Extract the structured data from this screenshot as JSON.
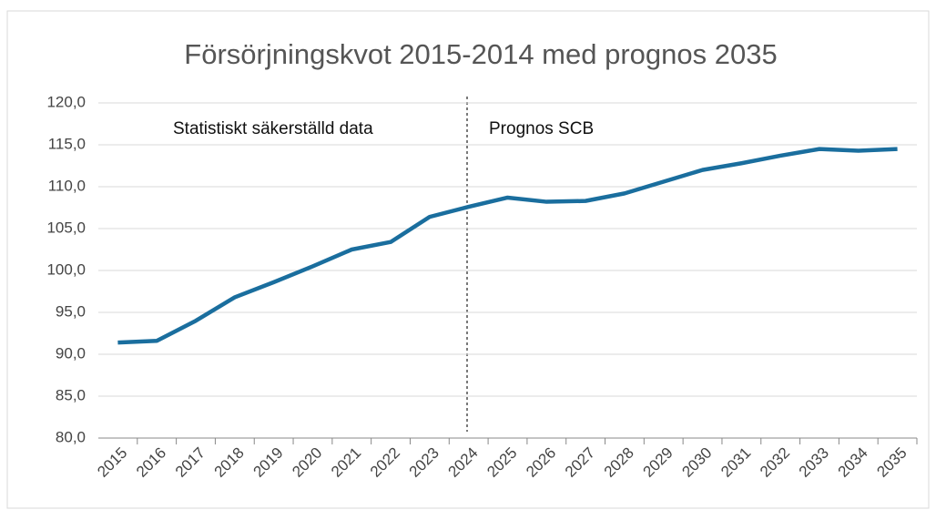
{
  "chart_data": {
    "type": "line",
    "title": "Försörjningskvot 2015-2014 med prognos 2035",
    "annotations": [
      "Statistiskt säkerställd data",
      "Prognos SCB"
    ],
    "categories": [
      "2015",
      "2016",
      "2017",
      "2018",
      "2019",
      "2020",
      "2021",
      "2022",
      "2023",
      "2024",
      "2025",
      "2026",
      "2027",
      "2028",
      "2029",
      "2030",
      "2031",
      "2032",
      "2033",
      "2034",
      "2035"
    ],
    "series": [
      {
        "name": "Försörjningskvot",
        "color": "#1a6e9e",
        "values": [
          91.4,
          91.6,
          94.0,
          96.8,
          98.6,
          100.5,
          102.5,
          103.4,
          106.4,
          107.6,
          108.7,
          108.2,
          108.3,
          109.2,
          110.6,
          112.0,
          112.8,
          113.7,
          114.5,
          114.3,
          114.5
        ]
      }
    ],
    "ylim": [
      80,
      120
    ],
    "yticks": [
      {
        "value": 80,
        "label": "80,0"
      },
      {
        "value": 85,
        "label": "85,0"
      },
      {
        "value": 90,
        "label": "90,0"
      },
      {
        "value": 95,
        "label": "95,0"
      },
      {
        "value": 100,
        "label": "100,0"
      },
      {
        "value": 105,
        "label": "105,0"
      },
      {
        "value": 110,
        "label": "110,0"
      },
      {
        "value": 115,
        "label": "115,0"
      },
      {
        "value": 120,
        "label": "120,0"
      }
    ],
    "grid": true
  }
}
